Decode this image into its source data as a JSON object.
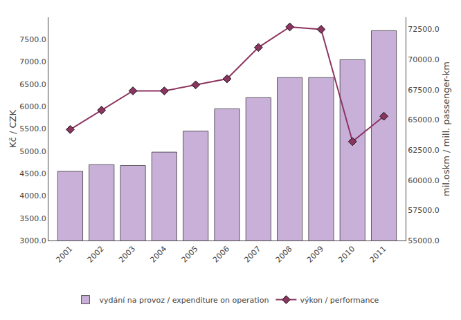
{
  "chart_data": {
    "type": "bar",
    "categories": [
      "2001",
      "2002",
      "2003",
      "2004",
      "2005",
      "2006",
      "2007",
      "2008",
      "2009",
      "2010",
      "2011"
    ],
    "series": [
      {
        "name": "vydání na provoz / expenditure on operation",
        "type": "bar",
        "color": "#c8b0d8",
        "values": [
          4550,
          4700,
          4680,
          4980,
          5450,
          5950,
          6200,
          6650,
          6650,
          7050,
          7700
        ]
      },
      {
        "name": "výkon / performance",
        "type": "line",
        "color": "#8b3560",
        "marker": "diamond",
        "axis": "y2",
        "values": [
          64200,
          65800,
          67400,
          67400,
          67900,
          68400,
          71000,
          72700,
          72500,
          63200,
          65300
        ]
      }
    ],
    "ylabel": "Kč / CZK",
    "y2label": "mil.oskm / mill. passenger-km",
    "ylim": [
      3000,
      8000
    ],
    "yticks": [
      {
        "value": 3000,
        "label": "3000.0"
      },
      {
        "value": 3500,
        "label": "3500.0"
      },
      {
        "value": 4000,
        "label": "4000.0"
      },
      {
        "value": 4500,
        "label": "4500.0"
      },
      {
        "value": 5000,
        "label": "5000.0"
      },
      {
        "value": 5500,
        "label": "5500.0"
      },
      {
        "value": 6000,
        "label": "6000.0"
      },
      {
        "value": 6500,
        "label": "6500.0"
      },
      {
        "value": 7000,
        "label": "7000.0"
      },
      {
        "value": 7500,
        "label": "7500.0"
      }
    ],
    "y2lim": [
      55000,
      73500
    ],
    "y2ticks": [
      {
        "value": 55000,
        "label": "55000.0"
      },
      {
        "value": 57500,
        "label": "57500.0"
      },
      {
        "value": 60000,
        "label": "60000.0"
      },
      {
        "value": 62500,
        "label": "62500.0"
      },
      {
        "value": 65000,
        "label": "65000.0"
      },
      {
        "value": 67500,
        "label": "67500.0"
      },
      {
        "value": 70000,
        "label": "70000.0"
      },
      {
        "value": 72500,
        "label": "72500.0"
      }
    ],
    "grid": false,
    "legend": "bottom"
  }
}
